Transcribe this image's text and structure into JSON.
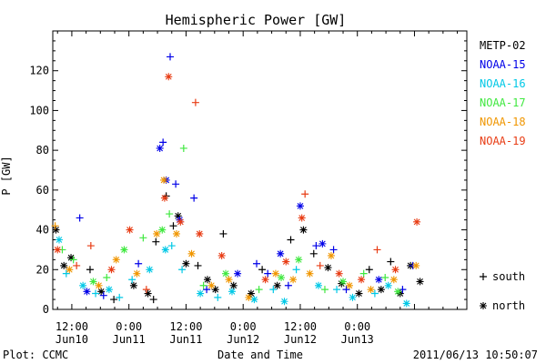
{
  "chart_data": {
    "type": "scatter",
    "title": "Hemispheric Power [GW]",
    "ylabel": "P [GW]",
    "xlabel": "Date and Time",
    "ylim": [
      0,
      140
    ],
    "xlim": [
      "2011-06-10 08:00",
      "2011-06-13 23:00"
    ],
    "y_ticks": [
      0,
      20,
      40,
      60,
      80,
      100,
      120
    ],
    "x_ticks": [
      {
        "time": "2011-06-10 12:00",
        "line1": "12:00",
        "line2": "Jun10"
      },
      {
        "time": "2011-06-11 00:00",
        "line1": "0:00",
        "line2": "Jun11"
      },
      {
        "time": "2011-06-11 12:00",
        "line1": "12:00",
        "line2": "Jun11"
      },
      {
        "time": "2011-06-12 00:00",
        "line1": "0:00",
        "line2": "Jun12"
      },
      {
        "time": "2011-06-12 12:00",
        "line1": "12:00",
        "line2": "Jun12"
      },
      {
        "time": "2011-06-13 00:00",
        "line1": "0:00",
        "line2": "Jun13"
      }
    ],
    "legend_position": "right",
    "symbol_key": [
      {
        "symbol": "+",
        "label": "south"
      },
      {
        "symbol": "*",
        "label": "north"
      }
    ],
    "series": [
      {
        "name": "METP-02",
        "color": "#000000",
        "points": [
          {
            "x": "2011-06-10 08:40",
            "y": 40,
            "s": "*"
          },
          {
            "x": "2011-06-10 10:20",
            "y": 22,
            "s": "*"
          },
          {
            "x": "2011-06-10 11:50",
            "y": 26,
            "s": "*"
          },
          {
            "x": "2011-06-10 15:50",
            "y": 20,
            "s": "+"
          },
          {
            "x": "2011-06-10 18:10",
            "y": 9,
            "s": "*"
          },
          {
            "x": "2011-06-10 20:50",
            "y": 5,
            "s": "+"
          },
          {
            "x": "2011-06-11 01:00",
            "y": 12,
            "s": "*"
          },
          {
            "x": "2011-06-11 04:00",
            "y": 8,
            "s": "*"
          },
          {
            "x": "2011-06-11 05:10",
            "y": 5,
            "s": "+"
          },
          {
            "x": "2011-06-11 05:40",
            "y": 34,
            "s": "+"
          },
          {
            "x": "2011-06-11 07:50",
            "y": 57,
            "s": "+"
          },
          {
            "x": "2011-06-11 09:20",
            "y": 42,
            "s": "+"
          },
          {
            "x": "2011-06-11 10:20",
            "y": 47,
            "s": "*"
          },
          {
            "x": "2011-06-11 12:00",
            "y": 23,
            "s": "*"
          },
          {
            "x": "2011-06-11 14:30",
            "y": 22,
            "s": "+"
          },
          {
            "x": "2011-06-11 16:30",
            "y": 15,
            "s": "*"
          },
          {
            "x": "2011-06-11 18:10",
            "y": 10,
            "s": "*"
          },
          {
            "x": "2011-06-11 19:50",
            "y": 38,
            "s": "+"
          },
          {
            "x": "2011-06-11 22:00",
            "y": 12,
            "s": "*"
          },
          {
            "x": "2011-06-12 01:40",
            "y": 8,
            "s": "*"
          },
          {
            "x": "2011-06-12 04:00",
            "y": 20,
            "s": "+"
          },
          {
            "x": "2011-06-12 07:10",
            "y": 12,
            "s": "*"
          },
          {
            "x": "2011-06-12 10:00",
            "y": 35,
            "s": "+"
          },
          {
            "x": "2011-06-12 12:40",
            "y": 40,
            "s": "*"
          },
          {
            "x": "2011-06-12 14:50",
            "y": 28,
            "s": "+"
          },
          {
            "x": "2011-06-12 17:50",
            "y": 21,
            "s": "*"
          },
          {
            "x": "2011-06-12 20:40",
            "y": 13,
            "s": "*"
          },
          {
            "x": "2011-06-13 00:20",
            "y": 8,
            "s": "*"
          },
          {
            "x": "2011-06-13 02:30",
            "y": 20,
            "s": "+"
          },
          {
            "x": "2011-06-13 05:00",
            "y": 10,
            "s": "*"
          },
          {
            "x": "2011-06-13 07:00",
            "y": 24,
            "s": "+"
          },
          {
            "x": "2011-06-13 09:00",
            "y": 8,
            "s": "*"
          },
          {
            "x": "2011-06-13 11:10",
            "y": 22,
            "s": "*"
          },
          {
            "x": "2011-06-13 13:10",
            "y": 14,
            "s": "*"
          }
        ]
      },
      {
        "name": "NOAA-15",
        "color": "#0000e8",
        "points": [
          {
            "x": "2011-06-10 13:40",
            "y": 46,
            "s": "+"
          },
          {
            "x": "2011-06-10 15:10",
            "y": 9,
            "s": "*"
          },
          {
            "x": "2011-06-10 18:40",
            "y": 7,
            "s": "+"
          },
          {
            "x": "2011-06-11 02:00",
            "y": 23,
            "s": "+"
          },
          {
            "x": "2011-06-11 06:30",
            "y": 81,
            "s": "*"
          },
          {
            "x": "2011-06-11 07:10",
            "y": 84,
            "s": "+"
          },
          {
            "x": "2011-06-11 07:50",
            "y": 65,
            "s": "*"
          },
          {
            "x": "2011-06-11 08:40",
            "y": 127,
            "s": "+"
          },
          {
            "x": "2011-06-11 09:50",
            "y": 63,
            "s": "+"
          },
          {
            "x": "2011-06-11 10:40",
            "y": 45,
            "s": "*"
          },
          {
            "x": "2011-06-11 13:40",
            "y": 56,
            "s": "+"
          },
          {
            "x": "2011-06-11 16:20",
            "y": 10,
            "s": "+"
          },
          {
            "x": "2011-06-11 22:50",
            "y": 18,
            "s": "*"
          },
          {
            "x": "2011-06-12 02:50",
            "y": 23,
            "s": "+"
          },
          {
            "x": "2011-06-12 05:10",
            "y": 18,
            "s": "+"
          },
          {
            "x": "2011-06-12 07:50",
            "y": 28,
            "s": "*"
          },
          {
            "x": "2011-06-12 09:30",
            "y": 12,
            "s": "+"
          },
          {
            "x": "2011-06-12 12:00",
            "y": 52,
            "s": "*"
          },
          {
            "x": "2011-06-12 15:20",
            "y": 32,
            "s": "+"
          },
          {
            "x": "2011-06-12 16:40",
            "y": 33,
            "s": "*"
          },
          {
            "x": "2011-06-12 19:00",
            "y": 30,
            "s": "+"
          },
          {
            "x": "2011-06-12 21:40",
            "y": 10,
            "s": "+"
          },
          {
            "x": "2011-06-13 04:30",
            "y": 15,
            "s": "*"
          },
          {
            "x": "2011-06-13 09:30",
            "y": 10,
            "s": "+"
          },
          {
            "x": "2011-06-13 11:40",
            "y": 22,
            "s": "+"
          }
        ]
      },
      {
        "name": "NOAA-16",
        "color": "#00c8e6",
        "points": [
          {
            "x": "2011-06-10 09:20",
            "y": 35,
            "s": "*"
          },
          {
            "x": "2011-06-10 10:50",
            "y": 18,
            "s": "+"
          },
          {
            "x": "2011-06-10 14:20",
            "y": 12,
            "s": "*"
          },
          {
            "x": "2011-06-10 17:00",
            "y": 8,
            "s": "+"
          },
          {
            "x": "2011-06-10 19:50",
            "y": 10,
            "s": "*"
          },
          {
            "x": "2011-06-10 22:00",
            "y": 6,
            "s": "+"
          },
          {
            "x": "2011-06-11 00:40",
            "y": 15,
            "s": "+"
          },
          {
            "x": "2011-06-11 04:20",
            "y": 20,
            "s": "*"
          },
          {
            "x": "2011-06-11 07:40",
            "y": 30,
            "s": "*"
          },
          {
            "x": "2011-06-11 09:00",
            "y": 32,
            "s": "+"
          },
          {
            "x": "2011-06-11 11:10",
            "y": 20,
            "s": "+"
          },
          {
            "x": "2011-06-11 15:00",
            "y": 8,
            "s": "*"
          },
          {
            "x": "2011-06-11 18:40",
            "y": 6,
            "s": "+"
          },
          {
            "x": "2011-06-11 21:40",
            "y": 9,
            "s": "*"
          },
          {
            "x": "2011-06-12 02:20",
            "y": 5,
            "s": "*"
          },
          {
            "x": "2011-06-12 06:20",
            "y": 10,
            "s": "+"
          },
          {
            "x": "2011-06-12 08:40",
            "y": 4,
            "s": "*"
          },
          {
            "x": "2011-06-12 11:10",
            "y": 20,
            "s": "+"
          },
          {
            "x": "2011-06-12 15:50",
            "y": 12,
            "s": "*"
          },
          {
            "x": "2011-06-12 19:40",
            "y": 10,
            "s": "+"
          },
          {
            "x": "2011-06-12 23:00",
            "y": 6,
            "s": "*"
          },
          {
            "x": "2011-06-13 03:40",
            "y": 8,
            "s": "+"
          },
          {
            "x": "2011-06-13 06:30",
            "y": 12,
            "s": "*"
          },
          {
            "x": "2011-06-13 10:20",
            "y": 3,
            "s": "*"
          }
        ]
      },
      {
        "name": "NOAA-17",
        "color": "#40e840",
        "points": [
          {
            "x": "2011-06-10 10:00",
            "y": 30,
            "s": "+"
          },
          {
            "x": "2011-06-10 12:20",
            "y": 25,
            "s": "+"
          },
          {
            "x": "2011-06-10 16:30",
            "y": 14,
            "s": "*"
          },
          {
            "x": "2011-06-10 19:20",
            "y": 16,
            "s": "+"
          },
          {
            "x": "2011-06-10 23:00",
            "y": 30,
            "s": "*"
          },
          {
            "x": "2011-06-11 03:00",
            "y": 36,
            "s": "+"
          },
          {
            "x": "2011-06-11 07:00",
            "y": 40,
            "s": "*"
          },
          {
            "x": "2011-06-11 08:30",
            "y": 48,
            "s": "+"
          },
          {
            "x": "2011-06-11 11:30",
            "y": 81,
            "s": "+"
          },
          {
            "x": "2011-06-11 15:40",
            "y": 12,
            "s": "+"
          },
          {
            "x": "2011-06-11 20:20",
            "y": 18,
            "s": "*"
          },
          {
            "x": "2011-06-12 03:20",
            "y": 10,
            "s": "+"
          },
          {
            "x": "2011-06-12 08:00",
            "y": 16,
            "s": "*"
          },
          {
            "x": "2011-06-12 11:40",
            "y": 25,
            "s": "*"
          },
          {
            "x": "2011-06-12 17:10",
            "y": 10,
            "s": "+"
          },
          {
            "x": "2011-06-12 21:00",
            "y": 14,
            "s": "*"
          },
          {
            "x": "2011-06-13 01:20",
            "y": 18,
            "s": "+"
          },
          {
            "x": "2011-06-13 05:50",
            "y": 16,
            "s": "+"
          },
          {
            "x": "2011-06-13 08:30",
            "y": 9,
            "s": "*"
          }
        ]
      },
      {
        "name": "NOAA-18",
        "color": "#f09600",
        "points": [
          {
            "x": "2011-06-10 08:30",
            "y": 42,
            "s": "+"
          },
          {
            "x": "2011-06-10 11:30",
            "y": 20,
            "s": "*"
          },
          {
            "x": "2011-06-10 17:40",
            "y": 12,
            "s": "*"
          },
          {
            "x": "2011-06-10 21:20",
            "y": 25,
            "s": "*"
          },
          {
            "x": "2011-06-11 01:40",
            "y": 18,
            "s": "*"
          },
          {
            "x": "2011-06-11 05:50",
            "y": 38,
            "s": "*"
          },
          {
            "x": "2011-06-11 07:20",
            "y": 65,
            "s": "*"
          },
          {
            "x": "2011-06-11 10:00",
            "y": 38,
            "s": "*"
          },
          {
            "x": "2011-06-11 13:10",
            "y": 28,
            "s": "*"
          },
          {
            "x": "2011-06-11 17:20",
            "y": 12,
            "s": "*"
          },
          {
            "x": "2011-06-11 21:00",
            "y": 15,
            "s": "*"
          },
          {
            "x": "2011-06-12 01:10",
            "y": 6,
            "s": "*"
          },
          {
            "x": "2011-06-12 06:50",
            "y": 18,
            "s": "*"
          },
          {
            "x": "2011-06-12 10:30",
            "y": 15,
            "s": "*"
          },
          {
            "x": "2011-06-12 14:00",
            "y": 18,
            "s": "*"
          },
          {
            "x": "2011-06-12 18:30",
            "y": 27,
            "s": "*"
          },
          {
            "x": "2011-06-12 22:20",
            "y": 12,
            "s": "*"
          },
          {
            "x": "2011-06-13 02:50",
            "y": 10,
            "s": "*"
          },
          {
            "x": "2011-06-13 07:40",
            "y": 15,
            "s": "*"
          },
          {
            "x": "2011-06-13 12:20",
            "y": 22,
            "s": "*"
          }
        ]
      },
      {
        "name": "NOAA-19",
        "color": "#e83c14",
        "points": [
          {
            "x": "2011-06-10 09:00",
            "y": 30,
            "s": "*"
          },
          {
            "x": "2011-06-10 13:00",
            "y": 22,
            "s": "+"
          },
          {
            "x": "2011-06-10 16:00",
            "y": 32,
            "s": "+"
          },
          {
            "x": "2011-06-10 20:20",
            "y": 20,
            "s": "*"
          },
          {
            "x": "2011-06-11 00:10",
            "y": 40,
            "s": "*"
          },
          {
            "x": "2011-06-11 03:40",
            "y": 10,
            "s": "+"
          },
          {
            "x": "2011-06-11 07:30",
            "y": 56,
            "s": "*"
          },
          {
            "x": "2011-06-11 08:20",
            "y": 117,
            "s": "*"
          },
          {
            "x": "2011-06-11 10:50",
            "y": 44,
            "s": "*"
          },
          {
            "x": "2011-06-11 14:00",
            "y": 104,
            "s": "+"
          },
          {
            "x": "2011-06-11 14:50",
            "y": 38,
            "s": "*"
          },
          {
            "x": "2011-06-11 19:30",
            "y": 27,
            "s": "*"
          },
          {
            "x": "2011-06-12 04:40",
            "y": 15,
            "s": "*"
          },
          {
            "x": "2011-06-12 09:00",
            "y": 24,
            "s": "*"
          },
          {
            "x": "2011-06-12 12:20",
            "y": 46,
            "s": "*"
          },
          {
            "x": "2011-06-12 13:00",
            "y": 58,
            "s": "+"
          },
          {
            "x": "2011-06-12 16:10",
            "y": 22,
            "s": "+"
          },
          {
            "x": "2011-06-12 20:10",
            "y": 18,
            "s": "*"
          },
          {
            "x": "2011-06-13 00:50",
            "y": 15,
            "s": "*"
          },
          {
            "x": "2011-06-13 04:10",
            "y": 30,
            "s": "+"
          },
          {
            "x": "2011-06-13 08:00",
            "y": 20,
            "s": "*"
          },
          {
            "x": "2011-06-13 12:30",
            "y": 44,
            "s": "*"
          }
        ]
      }
    ]
  },
  "footer": {
    "plot_credit": "Plot: CCMC",
    "timestamp": "2011/06/13 10:50:07"
  }
}
